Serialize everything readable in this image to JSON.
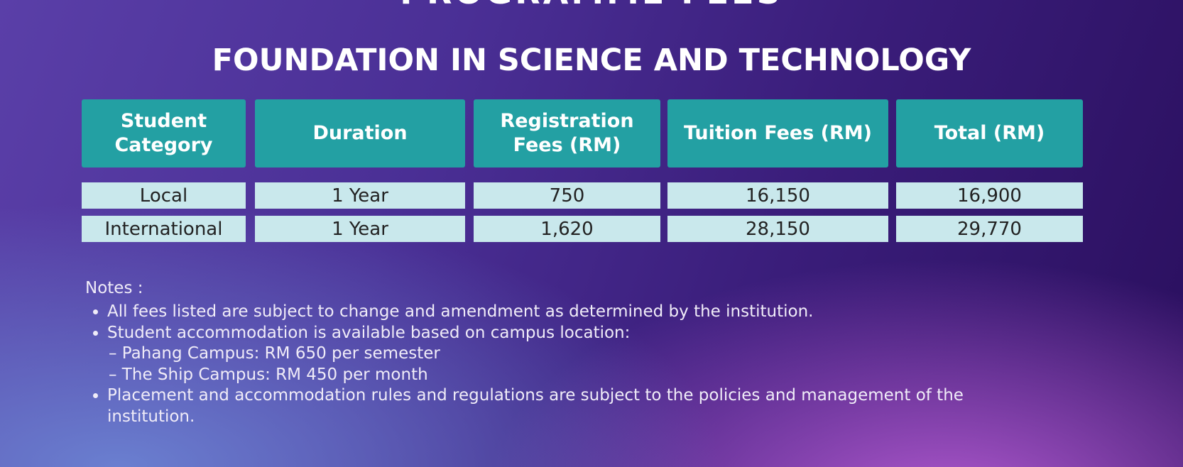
{
  "header": {
    "cut_title": "PROGRAMME FEES",
    "title": "FOUNDATION IN SCIENCE AND TECHNOLOGY"
  },
  "table": {
    "headers": [
      "Student Category",
      "Duration",
      "Registration Fees (RM)",
      "Tuition Fees (RM)",
      "Total (RM)"
    ],
    "rows": [
      [
        "Local",
        "1 Year",
        "750",
        "16,150",
        "16,900"
      ],
      [
        "International",
        "1 Year",
        "1,620",
        "28,150",
        "29,770"
      ]
    ]
  },
  "notes": {
    "label": "Notes :",
    "items": [
      {
        "text": "All fees listed are subject to change and amendment as determined by the institution."
      },
      {
        "text": "Student accommodation is available based on campus location:",
        "subitems": [
          "– Pahang Campus: RM 650 per semester",
          "– The Ship Campus: RM 450 per month"
        ]
      },
      {
        "text": "Placement and accommodation rules and regulations are subject to the policies and management of the institution."
      }
    ]
  }
}
